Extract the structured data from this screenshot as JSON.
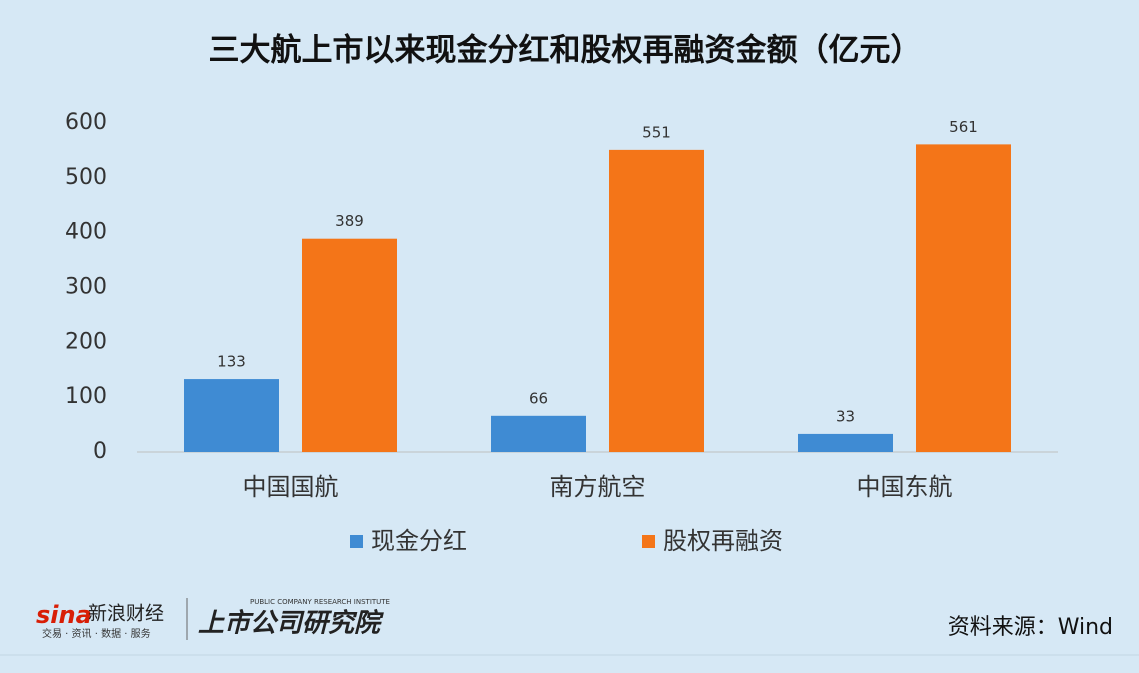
{
  "chart_data": {
    "type": "bar",
    "title": "三大航上市以来现金分红和股权再融资金额（亿元）",
    "categories": [
      "中国国航",
      "南方航空",
      "中国东航"
    ],
    "series": [
      {
        "name": "现金分红",
        "color": "#3f8bd3",
        "values": [
          133,
          66,
          33
        ]
      },
      {
        "name": "股权再融资",
        "color": "#f47518",
        "values": [
          389,
          551,
          561
        ]
      }
    ],
    "ylim": [
      0,
      600
    ],
    "yticks": [
      0,
      100,
      200,
      300,
      400,
      500,
      600
    ],
    "grid": false,
    "legend": "bottom",
    "source": "资料来源：Wind",
    "logo": {
      "brand": "sina",
      "name": "新浪财经",
      "tagline": "交易 · 资讯 · 数据 · 服务",
      "institute": "上市公司研究院",
      "institute_en": "PUBLIC COMPANY RESEARCH INSTITUTE"
    }
  }
}
